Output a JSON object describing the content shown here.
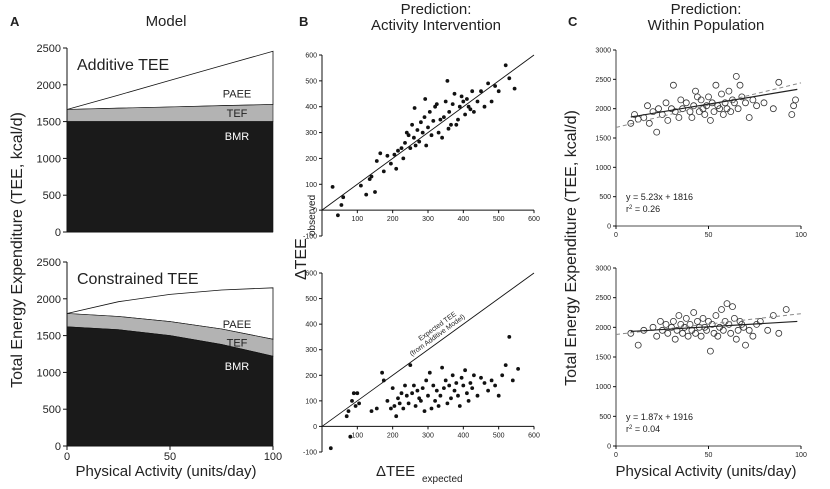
{
  "figure": {
    "panel_letters": [
      "A",
      "B",
      "C"
    ],
    "panel_titles": [
      "Model",
      "Prediction:\nActivity Intervention",
      "Prediction:\nWithin Population"
    ]
  },
  "chart_data": [
    {
      "id": "A-top",
      "type": "area",
      "title": "Additive TEE",
      "xlabel": "Physical Activity (units/day)",
      "ylabel": "Total Energy Expenditure (TEE, kcal/d)",
      "xlim": [
        0,
        100
      ],
      "ylim": [
        0,
        2500
      ],
      "yticks": [
        0,
        500,
        1000,
        1500,
        2000,
        2500
      ],
      "xticks": [
        0,
        50,
        100
      ],
      "x": [
        0,
        25,
        50,
        75,
        100
      ],
      "series": [
        {
          "name": "BMR",
          "values": [
            1500,
            1500,
            1500,
            1500,
            1500
          ],
          "color": "#1a1a1a"
        },
        {
          "name": "TEF",
          "values": [
            1665,
            1682,
            1699,
            1716,
            1733
          ],
          "color": "#b3b3b3"
        },
        {
          "name": "PAEE",
          "values": [
            1665,
            1860,
            2060,
            2260,
            2455
          ],
          "color": "#ffffff"
        }
      ]
    },
    {
      "id": "A-bottom",
      "type": "area",
      "title": "Constrained TEE",
      "xlabel": "Physical Activity (units/day)",
      "ylabel": "Total Energy Expenditure (TEE, kcal/d)",
      "xlim": [
        0,
        100
      ],
      "ylim": [
        0,
        2500
      ],
      "yticks": [
        0,
        500,
        1000,
        1500,
        2000,
        2500
      ],
      "xticks": [
        0,
        50,
        100
      ],
      "x": [
        0,
        25,
        50,
        75,
        100
      ],
      "series": [
        {
          "name": "BMR",
          "values": [
            1620,
            1580,
            1500,
            1380,
            1220
          ],
          "color": "#1a1a1a"
        },
        {
          "name": "TEF",
          "values": [
            1800,
            1760,
            1690,
            1590,
            1450
          ],
          "color": "#b3b3b3"
        },
        {
          "name": "PAEE",
          "values": [
            1800,
            1960,
            2060,
            2120,
            2150
          ],
          "color": "#ffffff"
        }
      ]
    },
    {
      "id": "B-top",
      "type": "scatter",
      "xlabel": "ΔTEE expected",
      "ylabel": "ΔTEE observed",
      "xlim": [
        0,
        600
      ],
      "ylim": [
        -100,
        600
      ],
      "xticks": [
        0,
        100,
        200,
        300,
        400,
        500,
        600
      ],
      "yticks": [
        -100,
        0,
        100,
        200,
        300,
        400,
        500,
        600
      ],
      "line": {
        "x": [
          0,
          600
        ],
        "y": [
          0,
          600
        ]
      },
      "points": [
        [
          30,
          90
        ],
        [
          45,
          -20
        ],
        [
          55,
          20
        ],
        [
          60,
          50
        ],
        [
          110,
          95
        ],
        [
          125,
          60
        ],
        [
          135,
          120
        ],
        [
          140,
          130
        ],
        [
          150,
          70
        ],
        [
          155,
          190
        ],
        [
          165,
          220
        ],
        [
          175,
          150
        ],
        [
          185,
          210
        ],
        [
          195,
          180
        ],
        [
          205,
          215
        ],
        [
          210,
          160
        ],
        [
          215,
          230
        ],
        [
          225,
          240
        ],
        [
          230,
          200
        ],
        [
          235,
          260
        ],
        [
          240,
          300
        ],
        [
          245,
          290
        ],
        [
          250,
          240
        ],
        [
          255,
          330
        ],
        [
          260,
          280
        ],
        [
          262,
          395
        ],
        [
          265,
          250
        ],
        [
          270,
          310
        ],
        [
          275,
          265
        ],
        [
          280,
          340
        ],
        [
          285,
          300
        ],
        [
          290,
          360
        ],
        [
          292,
          430
        ],
        [
          295,
          250
        ],
        [
          300,
          320
        ],
        [
          305,
          380
        ],
        [
          310,
          290
        ],
        [
          315,
          345
        ],
        [
          320,
          400
        ],
        [
          325,
          410
        ],
        [
          330,
          300
        ],
        [
          335,
          350
        ],
        [
          340,
          280
        ],
        [
          345,
          360
        ],
        [
          350,
          420
        ],
        [
          355,
          500
        ],
        [
          358,
          315
        ],
        [
          360,
          380
        ],
        [
          365,
          330
        ],
        [
          370,
          410
        ],
        [
          375,
          450
        ],
        [
          380,
          330
        ],
        [
          385,
          350
        ],
        [
          390,
          400
        ],
        [
          395,
          440
        ],
        [
          400,
          420
        ],
        [
          405,
          370
        ],
        [
          410,
          430
        ],
        [
          415,
          400
        ],
        [
          420,
          390
        ],
        [
          425,
          460
        ],
        [
          430,
          380
        ],
        [
          440,
          420
        ],
        [
          450,
          460
        ],
        [
          460,
          400
        ],
        [
          470,
          490
        ],
        [
          480,
          420
        ],
        [
          490,
          480
        ],
        [
          500,
          460
        ],
        [
          520,
          560
        ],
        [
          530,
          510
        ],
        [
          545,
          470
        ]
      ]
    },
    {
      "id": "B-bottom",
      "type": "scatter",
      "xlabel": "ΔTEE expected",
      "ylabel": "ΔTEE observed",
      "xlim": [
        0,
        600
      ],
      "ylim": [
        -100,
        600
      ],
      "xticks": [
        0,
        100,
        200,
        300,
        400,
        500,
        600
      ],
      "yticks": [
        -100,
        0,
        100,
        200,
        300,
        400,
        500,
        600
      ],
      "line": {
        "x": [
          0,
          600
        ],
        "y": [
          0,
          600
        ]
      },
      "annotation": "Expected TEE\n(from Additive Model)",
      "points": [
        [
          25,
          -85
        ],
        [
          70,
          40
        ],
        [
          75,
          60
        ],
        [
          80,
          -40
        ],
        [
          85,
          100
        ],
        [
          90,
          130
        ],
        [
          95,
          80
        ],
        [
          100,
          130
        ],
        [
          105,
          90
        ],
        [
          140,
          60
        ],
        [
          155,
          70
        ],
        [
          170,
          210
        ],
        [
          175,
          180
        ],
        [
          185,
          100
        ],
        [
          195,
          70
        ],
        [
          200,
          150
        ],
        [
          205,
          80
        ],
        [
          210,
          40
        ],
        [
          215,
          110
        ],
        [
          220,
          90
        ],
        [
          225,
          130
        ],
        [
          230,
          70
        ],
        [
          235,
          160
        ],
        [
          240,
          120
        ],
        [
          245,
          90
        ],
        [
          250,
          240
        ],
        [
          255,
          130
        ],
        [
          260,
          160
        ],
        [
          265,
          80
        ],
        [
          270,
          140
        ],
        [
          275,
          110
        ],
        [
          280,
          100
        ],
        [
          285,
          150
        ],
        [
          290,
          60
        ],
        [
          295,
          180
        ],
        [
          300,
          120
        ],
        [
          305,
          210
        ],
        [
          310,
          70
        ],
        [
          315,
          160
        ],
        [
          320,
          100
        ],
        [
          325,
          140
        ],
        [
          330,
          80
        ],
        [
          335,
          120
        ],
        [
          340,
          230
        ],
        [
          345,
          150
        ],
        [
          350,
          180
        ],
        [
          355,
          90
        ],
        [
          360,
          160
        ],
        [
          365,
          110
        ],
        [
          370,
          200
        ],
        [
          375,
          140
        ],
        [
          380,
          170
        ],
        [
          385,
          120
        ],
        [
          390,
          80
        ],
        [
          395,
          190
        ],
        [
          400,
          160
        ],
        [
          405,
          220
        ],
        [
          410,
          130
        ],
        [
          415,
          100
        ],
        [
          420,
          170
        ],
        [
          425,
          150
        ],
        [
          430,
          200
        ],
        [
          440,
          120
        ],
        [
          450,
          190
        ],
        [
          460,
          170
        ],
        [
          470,
          140
        ],
        [
          480,
          180
        ],
        [
          490,
          160
        ],
        [
          500,
          120
        ],
        [
          510,
          200
        ],
        [
          520,
          240
        ],
        [
          530,
          350
        ],
        [
          540,
          180
        ],
        [
          555,
          225
        ]
      ]
    },
    {
      "id": "C-top",
      "type": "scatter",
      "xlabel": "Physical Activity (units/day)",
      "ylabel": "Total Energy Expenditure (TEE, kcal/d)",
      "xlim": [
        0,
        100
      ],
      "ylim": [
        0,
        3000
      ],
      "xticks": [
        0,
        50,
        100
      ],
      "yticks": [
        0,
        500,
        1000,
        1500,
        2000,
        2500,
        3000
      ],
      "regression": "y = 5.23x + 1816",
      "r2": "0.26",
      "fit_line": {
        "slope": 5.23,
        "intercept": 1816
      },
      "dashed_line": {
        "x": [
          0,
          100
        ],
        "y": [
          1680,
          2440
        ]
      },
      "points": [
        [
          8,
          1750
        ],
        [
          10,
          1900
        ],
        [
          12,
          1820
        ],
        [
          15,
          1850
        ],
        [
          17,
          2050
        ],
        [
          18,
          1750
        ],
        [
          20,
          1950
        ],
        [
          22,
          1600
        ],
        [
          23,
          2000
        ],
        [
          25,
          1900
        ],
        [
          27,
          2100
        ],
        [
          28,
          1800
        ],
        [
          30,
          2000
        ],
        [
          31,
          2400
        ],
        [
          32,
          1950
        ],
        [
          34,
          1850
        ],
        [
          35,
          2150
        ],
        [
          36,
          2000
        ],
        [
          38,
          2100
        ],
        [
          40,
          1950
        ],
        [
          41,
          1850
        ],
        [
          42,
          2050
        ],
        [
          43,
          2300
        ],
        [
          44,
          2200
        ],
        [
          45,
          1950
        ],
        [
          46,
          2150
        ],
        [
          47,
          2000
        ],
        [
          48,
          1900
        ],
        [
          49,
          2050
        ],
        [
          50,
          2200
        ],
        [
          51,
          1800
        ],
        [
          52,
          2100
        ],
        [
          53,
          1950
        ],
        [
          54,
          2400
        ],
        [
          55,
          2050
        ],
        [
          56,
          2000
        ],
        [
          57,
          2250
        ],
        [
          58,
          1900
        ],
        [
          59,
          2100
        ],
        [
          60,
          2000
        ],
        [
          61,
          2300
        ],
        [
          62,
          1950
        ],
        [
          63,
          2150
        ],
        [
          64,
          2100
        ],
        [
          65,
          2550
        ],
        [
          66,
          2000
        ],
        [
          67,
          2400
        ],
        [
          68,
          2200
        ],
        [
          70,
          2100
        ],
        [
          72,
          1850
        ],
        [
          74,
          2150
        ],
        [
          76,
          2050
        ],
        [
          80,
          2100
        ],
        [
          85,
          2000
        ],
        [
          88,
          2450
        ],
        [
          95,
          1900
        ],
        [
          96,
          2050
        ],
        [
          97,
          2150
        ]
      ]
    },
    {
      "id": "C-bottom",
      "type": "scatter",
      "xlabel": "Physical Activity (units/day)",
      "ylabel": "Total Energy Expenditure (TEE, kcal/d)",
      "xlim": [
        0,
        100
      ],
      "ylim": [
        0,
        3000
      ],
      "xticks": [
        0,
        50,
        100
      ],
      "yticks": [
        0,
        500,
        1000,
        1500,
        2000,
        2500,
        3000
      ],
      "regression": "y = 1.87x + 1916",
      "r2": "0.04",
      "fit_line": {
        "slope": 1.87,
        "intercept": 1916
      },
      "dashed_line": {
        "x": [
          0,
          100
        ],
        "y": [
          1880,
          2230
        ]
      },
      "points": [
        [
          8,
          1900
        ],
        [
          12,
          1700
        ],
        [
          15,
          1950
        ],
        [
          20,
          2000
        ],
        [
          22,
          1850
        ],
        [
          24,
          2100
        ],
        [
          25,
          1950
        ],
        [
          27,
          2050
        ],
        [
          28,
          1900
        ],
        [
          30,
          2000
        ],
        [
          31,
          2100
        ],
        [
          32,
          1800
        ],
        [
          33,
          1950
        ],
        [
          34,
          2200
        ],
        [
          35,
          2050
        ],
        [
          36,
          1900
        ],
        [
          37,
          2000
        ],
        [
          38,
          2150
        ],
        [
          39,
          1850
        ],
        [
          40,
          2050
        ],
        [
          41,
          1950
        ],
        [
          42,
          2250
        ],
        [
          43,
          1900
        ],
        [
          44,
          2100
        ],
        [
          45,
          2000
        ],
        [
          46,
          1850
        ],
        [
          47,
          2150
        ],
        [
          48,
          2000
        ],
        [
          49,
          1950
        ],
        [
          50,
          2100
        ],
        [
          51,
          1600
        ],
        [
          52,
          2050
        ],
        [
          53,
          1900
        ],
        [
          54,
          2200
        ],
        [
          55,
          1850
        ],
        [
          56,
          2000
        ],
        [
          57,
          2300
        ],
        [
          58,
          1950
        ],
        [
          59,
          2100
        ],
        [
          60,
          2400
        ],
        [
          61,
          2050
        ],
        [
          62,
          1900
        ],
        [
          63,
          2350
        ],
        [
          64,
          2150
        ],
        [
          65,
          1800
        ],
        [
          66,
          1950
        ],
        [
          67,
          2100
        ],
        [
          68,
          2050
        ],
        [
          69,
          2000
        ],
        [
          70,
          1700
        ],
        [
          72,
          1950
        ],
        [
          74,
          1850
        ],
        [
          76,
          2050
        ],
        [
          78,
          2100
        ],
        [
          82,
          1950
        ],
        [
          85,
          2200
        ],
        [
          88,
          1900
        ],
        [
          92,
          2300
        ]
      ]
    }
  ]
}
